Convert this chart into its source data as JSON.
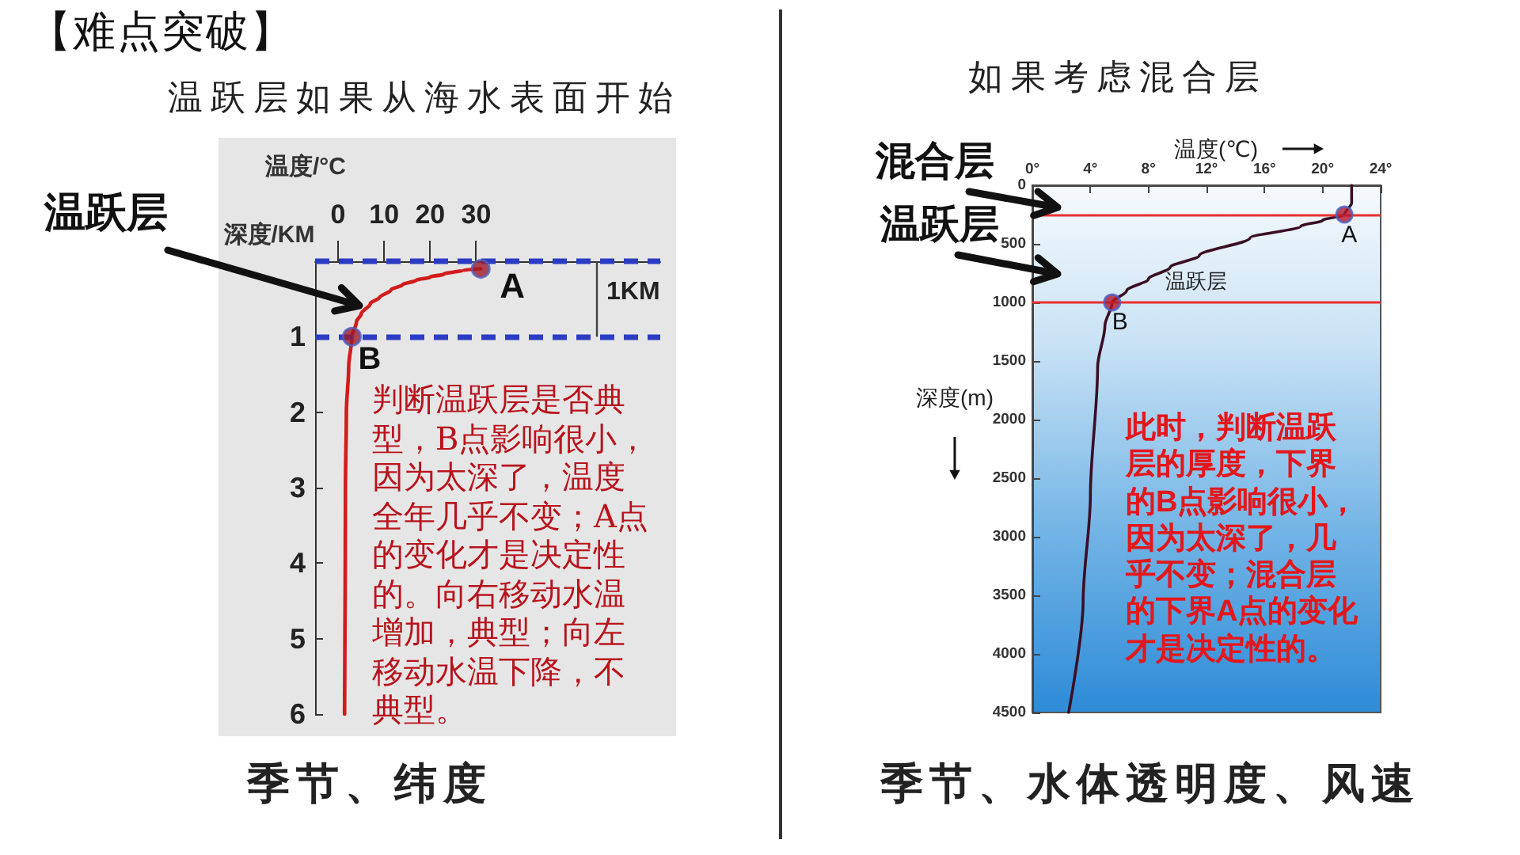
{
  "chart_data": [
    {
      "type": "line",
      "title": "温跃层如果从海水表面开始",
      "xlabel": "温度/°C",
      "ylabel": "深度/KM",
      "marker": "none",
      "line_style": "solid",
      "x": [
        31,
        27,
        23,
        20,
        17,
        14,
        11.5,
        9,
        7,
        5,
        4,
        3,
        2.3,
        1.8,
        1.6,
        1.4
      ],
      "series": [
        {
          "color": "#d21c1c",
          "values": [
            0.1,
            0.12,
            0.17,
            0.21,
            0.25,
            0.31,
            0.38,
            0.48,
            0.56,
            0.7,
            0.8,
            1,
            1.4,
            2,
            3,
            6
          ]
        },
        {
          "type": "scatter",
          "marker": "circle",
          "color": "#9e1a2a",
          "x": [
            31,
            3
          ],
          "values": [
            0.1,
            1
          ]
        }
      ],
      "xlim": [
        -5,
        70
      ],
      "xticks": [
        0,
        10,
        20,
        30
      ],
      "ylim": [
        6,
        0
      ],
      "yticks": [
        1,
        2,
        3,
        4,
        5,
        6
      ],
      "ref_lines": [
        {
          "axis": "y",
          "value": 0,
          "color": "#2b3bc4",
          "line_style": "dashed"
        },
        {
          "axis": "y",
          "value": 1,
          "color": "#2b3bc4",
          "line_style": "dashed"
        }
      ],
      "annotations": [
        "【难点突破】",
        "温跃层",
        "1KM",
        "判断温跃层是否典型，B点影响很小，因为太深了，温度全年几乎不变；A点的变化才是决定性的。向右移动水温增加，典型；向左移动水温下降，不典型。",
        "季节、纬度",
        {
          "text": "A",
          "x": 31,
          "y": 0.1
        },
        {
          "text": "B",
          "x": 3,
          "y": 1
        }
      ]
    },
    {
      "type": "line",
      "title": "如果考虑混合层",
      "xlabel": "温度(℃)",
      "ylabel": "深度(m)",
      "marker": "none",
      "line_style": "solid",
      "x": [
        22,
        22,
        21.5,
        20,
        18.5,
        15,
        11.5,
        9.5,
        8,
        6.5,
        5.5,
        5,
        4.5,
        4,
        3.5,
        2.5
      ],
      "series": [
        {
          "color": "#3b0f24",
          "values": [
            0,
            150,
            250,
            300,
            350,
            450,
            600,
            700,
            800,
            900,
            1000,
            1200,
            1550,
            2650,
            3550,
            4500
          ]
        },
        {
          "type": "scatter",
          "marker": "circle",
          "color": "#b5162a",
          "x": [
            21.5,
            5.5
          ],
          "values": [
            250,
            1000
          ]
        }
      ],
      "xlim": [
        0,
        24
      ],
      "xticks": [
        {
          "value": 0,
          "label": "0°"
        },
        {
          "value": 4,
          "label": "4°"
        },
        {
          "value": 8,
          "label": "8°"
        },
        {
          "value": 12,
          "label": "12°"
        },
        {
          "value": 16,
          "label": "16°"
        },
        {
          "value": 20,
          "label": "20°"
        },
        {
          "value": 24,
          "label": "24°"
        }
      ],
      "ylim": [
        4500,
        0
      ],
      "yticks": [
        0,
        500,
        1000,
        1500,
        2000,
        2500,
        3000,
        3500,
        4000,
        4500
      ],
      "ref_lines": [
        {
          "axis": "y",
          "value": 250,
          "color": "#e8312f",
          "line_style": "solid"
        },
        {
          "axis": "y",
          "value": 1000,
          "color": "#e8312f",
          "line_style": "solid"
        }
      ],
      "annotations": [
        "混合层",
        "温跃层",
        "温跃层",
        "此时，判断温跃层的厚度，下界的B点影响很小，因为太深了，几乎不变；混合层的下界A点的变化才是决定性的。",
        "季节、水体透明度、风速",
        {
          "text": "A",
          "x": 21.5,
          "y": 250
        },
        {
          "text": "B",
          "x": 5.5,
          "y": 1000
        }
      ]
    }
  ]
}
